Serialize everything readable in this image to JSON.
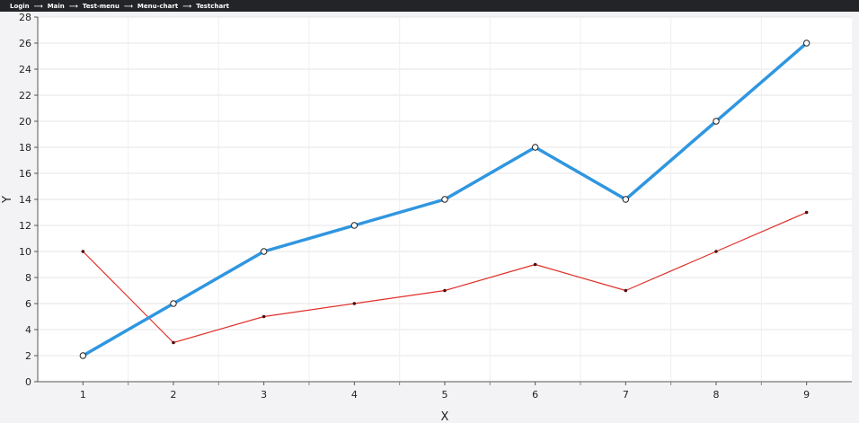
{
  "breadcrumb": {
    "items": [
      "Login",
      "Main",
      "Test-menu",
      "Menu-chart",
      "Testchart"
    ],
    "separator": "⟶"
  },
  "chart_data": {
    "type": "line",
    "title": "",
    "xlabel": "X",
    "ylabel": "Y",
    "x": [
      1,
      2,
      3,
      4,
      5,
      6,
      7,
      8,
      9
    ],
    "xlim": [
      0.5,
      9.5
    ],
    "ylim": [
      0,
      28
    ],
    "y_ticks": [
      0,
      2,
      4,
      6,
      8,
      10,
      12,
      14,
      16,
      18,
      20,
      22,
      24,
      26,
      28
    ],
    "grid": true,
    "legend": "none",
    "series": [
      {
        "values": [
          2,
          6,
          10,
          12,
          14,
          18,
          14,
          20,
          26
        ],
        "color": "#2f96e0",
        "marker": "open-circle"
      },
      {
        "values": [
          10,
          3,
          5,
          6,
          7,
          9,
          7,
          10,
          13
        ],
        "color": "#e0302a",
        "marker": "dot"
      }
    ]
  }
}
